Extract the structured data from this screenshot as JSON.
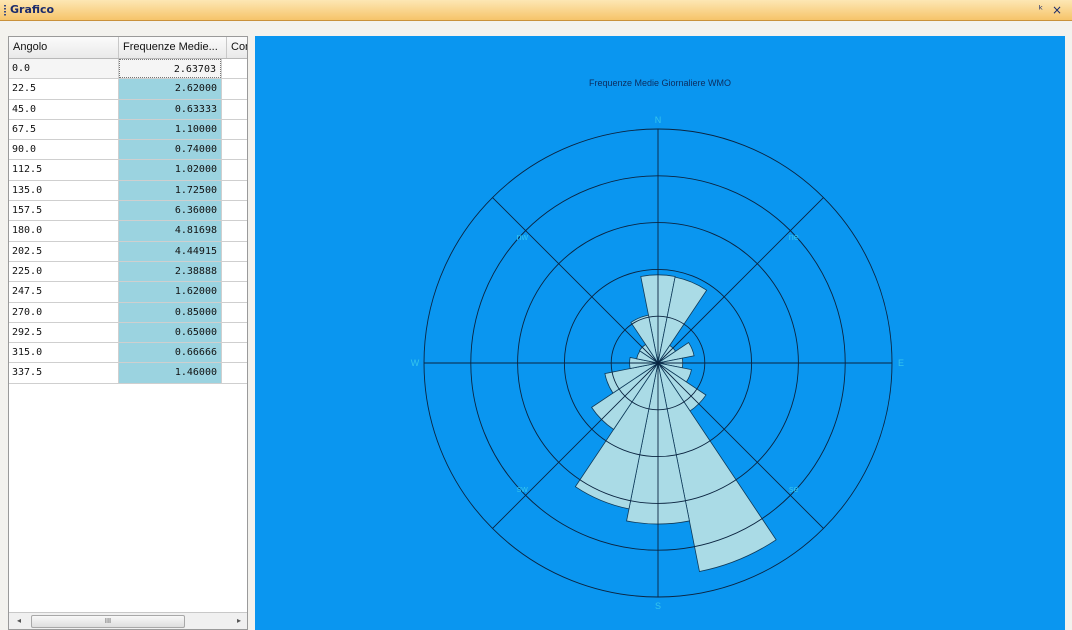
{
  "window": {
    "title": "Grafico",
    "pin_glyph": "ᴟ",
    "close_glyph": "×"
  },
  "grid": {
    "columns": [
      "Angolo",
      "Frequenze Medie...",
      "Con"
    ],
    "rows": [
      {
        "angle": "0.0",
        "freq": "2.63703"
      },
      {
        "angle": "22.5",
        "freq": "2.62000"
      },
      {
        "angle": "45.0",
        "freq": "0.63333"
      },
      {
        "angle": "67.5",
        "freq": "1.10000"
      },
      {
        "angle": "90.0",
        "freq": "0.74000"
      },
      {
        "angle": "112.5",
        "freq": "1.02000"
      },
      {
        "angle": "135.0",
        "freq": "1.72500"
      },
      {
        "angle": "157.5",
        "freq": "6.36000"
      },
      {
        "angle": "180.0",
        "freq": "4.81698"
      },
      {
        "angle": "202.5",
        "freq": "4.44915"
      },
      {
        "angle": "225.0",
        "freq": "2.38888"
      },
      {
        "angle": "247.5",
        "freq": "1.62000"
      },
      {
        "angle": "270.0",
        "freq": "0.85000"
      },
      {
        "angle": "292.5",
        "freq": "0.65000"
      },
      {
        "angle": "315.0",
        "freq": "0.66666"
      },
      {
        "angle": "337.5",
        "freq": "1.46000"
      }
    ],
    "scroll_thumb_glyph": "III",
    "scroll_left_glyph": "◂",
    "scroll_right_glyph": "▸"
  },
  "chart_data": {
    "type": "polar-bar",
    "title": "Frequenze Medie Giornaliere WMO",
    "directions": [
      "N",
      "ne",
      "E",
      "se",
      "S",
      "sw",
      "W",
      "nw"
    ],
    "categories": [
      0.0,
      22.5,
      45.0,
      67.5,
      90.0,
      112.5,
      135.0,
      157.5,
      180.0,
      202.5,
      225.0,
      247.5,
      270.0,
      292.5,
      315.0,
      337.5
    ],
    "values": [
      2.63703,
      2.62,
      0.63333,
      1.1,
      0.74,
      1.02,
      1.725,
      6.36,
      4.81698,
      4.44915,
      2.38888,
      1.62,
      0.85,
      0.65,
      0.66666,
      1.46
    ],
    "rmax": 7,
    "grid": true,
    "colors": {
      "background": "#0a96f0",
      "bar_fill": "#aadbe6",
      "bar_stroke": "#0e3a5a",
      "grid_line": "#0b2440",
      "direction_label": "#35c4ec",
      "title": "#0c2d5e"
    }
  }
}
